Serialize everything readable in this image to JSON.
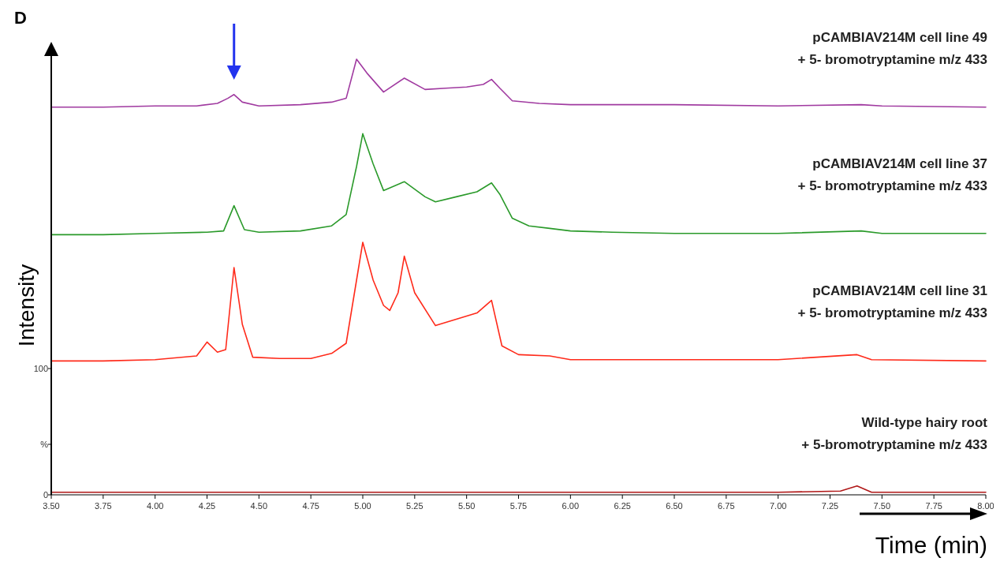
{
  "chart_data": {
    "type": "line",
    "xlabel": "Time (min)",
    "ylabel": "Intensity",
    "annotations": [
      "D"
    ],
    "xlim": [
      3.5,
      8.0
    ],
    "ylim": [
      0,
      350
    ],
    "xticks": [
      {
        "value": 3.5,
        "label": "3.50"
      },
      {
        "value": 3.75,
        "label": "3.75"
      },
      {
        "value": 4,
        "label": "4.00"
      },
      {
        "value": 4.25,
        "label": "4.25"
      },
      {
        "value": 4.5,
        "label": "4.50"
      },
      {
        "value": 4.75,
        "label": "4.75"
      },
      {
        "value": 5,
        "label": "5.00"
      },
      {
        "value": 5.25,
        "label": "5.25"
      },
      {
        "value": 5.5,
        "label": "5.50"
      },
      {
        "value": 5.75,
        "label": "5.75"
      },
      {
        "value": 6,
        "label": "6.00"
      },
      {
        "value": 6.25,
        "label": "6.25"
      },
      {
        "value": 6.5,
        "label": "6.50"
      },
      {
        "value": 6.75,
        "label": "6.75"
      },
      {
        "value": 7,
        "label": "7.00"
      },
      {
        "value": 7.25,
        "label": "7.25"
      },
      {
        "value": 7.5,
        "label": "7.50"
      },
      {
        "value": 7.75,
        "label": "7.75"
      },
      {
        "value": 8,
        "label": "8.00"
      }
    ],
    "yticks": [
      0,
      {
        "value": 40,
        "label": "%"
      },
      100
    ],
    "grid": false,
    "marker": "none",
    "line_style": "solid",
    "series": [
      {
        "name": "pCAMBIAV214M cell line 49\n+ 5- bromotryptamine m/z 433",
        "color": "#a03aa0",
        "x": [
          3.5,
          3.75,
          4.0,
          4.2,
          4.3,
          4.35,
          4.38,
          4.42,
          4.5,
          4.7,
          4.85,
          4.92,
          4.97,
          5.02,
          5.1,
          5.2,
          5.3,
          5.4,
          5.5,
          5.58,
          5.62,
          5.66,
          5.72,
          5.85,
          6.0,
          6.5,
          7.0,
          7.4,
          7.5,
          8.0
        ],
        "values": [
          307,
          307,
          308,
          308,
          310,
          314,
          317,
          311,
          308,
          309,
          311,
          314,
          345,
          334,
          319,
          330,
          321,
          322,
          323,
          325,
          329,
          322,
          312,
          310,
          309,
          309,
          308,
          309,
          308,
          307
        ]
      },
      {
        "name": "pCAMBIAV214M cell line 37\n+ 5- bromotryptamine m/z 433",
        "color": "#2a9a2a",
        "x": [
          3.5,
          3.75,
          4.0,
          4.25,
          4.33,
          4.38,
          4.43,
          4.5,
          4.7,
          4.85,
          4.92,
          4.97,
          5.0,
          5.05,
          5.1,
          5.2,
          5.3,
          5.35,
          5.45,
          5.55,
          5.62,
          5.66,
          5.72,
          5.8,
          5.9,
          6.0,
          6.2,
          6.5,
          7.0,
          7.4,
          7.5,
          8.0
        ],
        "values": [
          206,
          206,
          207,
          208,
          209,
          229,
          210,
          208,
          209,
          213,
          222,
          260,
          286,
          262,
          241,
          248,
          236,
          232,
          236,
          240,
          247,
          238,
          219,
          213,
          211,
          209,
          208,
          207,
          207,
          209,
          207,
          207
        ]
      },
      {
        "name": "pCAMBIAV214M cell line 31\n+ 5- bromotryptamine m/z 433",
        "color": "#ff2a1a",
        "x": [
          3.5,
          3.75,
          4.0,
          4.2,
          4.25,
          4.3,
          4.34,
          4.38,
          4.42,
          4.47,
          4.6,
          4.75,
          4.85,
          4.92,
          4.97,
          5.0,
          5.05,
          5.1,
          5.13,
          5.17,
          5.2,
          5.25,
          5.35,
          5.45,
          5.55,
          5.62,
          5.67,
          5.75,
          5.9,
          6.0,
          6.25,
          6.5,
          7.0,
          7.38,
          7.45,
          8.0
        ],
        "values": [
          106,
          106,
          107,
          110,
          121,
          113,
          115,
          180,
          135,
          109,
          108,
          108,
          112,
          120,
          170,
          200,
          170,
          150,
          146,
          160,
          189,
          160,
          134,
          139,
          144,
          154,
          118,
          111,
          110,
          107,
          107,
          107,
          107,
          111,
          107,
          106
        ]
      },
      {
        "name": "Wild-type hairy root\n+ 5-bromotryptamine m/z 433",
        "color": "#b01818",
        "x": [
          3.5,
          4.0,
          4.5,
          5.0,
          5.5,
          6.0,
          6.5,
          7.0,
          7.3,
          7.38,
          7.45,
          7.6,
          8.0
        ],
        "values": [
          2,
          2,
          2,
          2,
          2,
          2,
          2,
          2,
          3,
          7,
          2,
          2,
          2
        ]
      }
    ]
  }
}
